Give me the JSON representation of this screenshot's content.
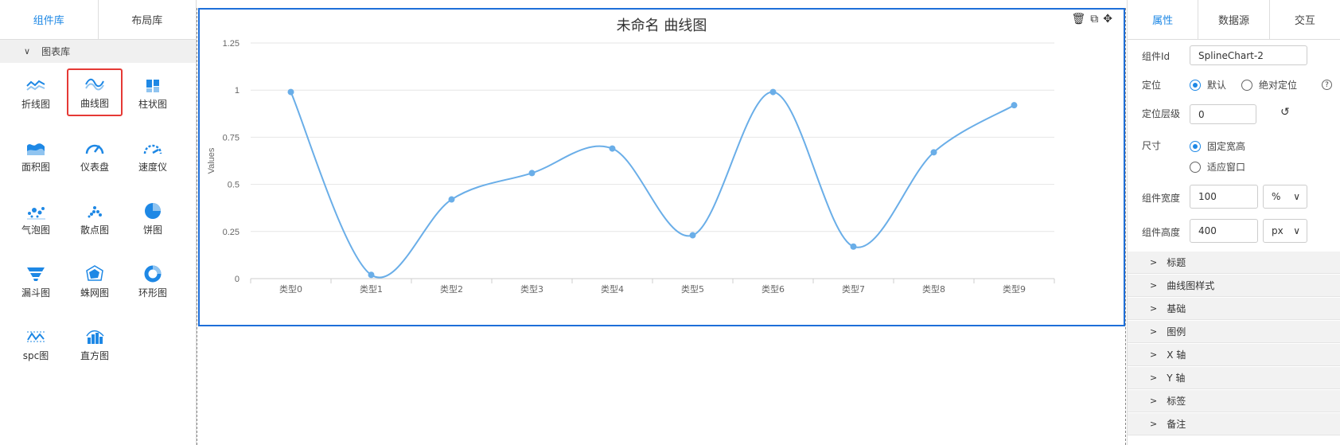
{
  "left_panel": {
    "tabs": [
      {
        "label": "组件库"
      },
      {
        "label": "布局库"
      }
    ],
    "section": {
      "label": "图表库"
    },
    "items": [
      {
        "label": "折线图",
        "icon": "line-chart-icon"
      },
      {
        "label": "曲线图",
        "icon": "spline-chart-icon",
        "selected": true
      },
      {
        "label": "柱状图",
        "icon": "bar-chart-icon"
      },
      {
        "label": "面积图",
        "icon": "area-chart-icon"
      },
      {
        "label": "仪表盘",
        "icon": "gauge-icon"
      },
      {
        "label": "速度仪",
        "icon": "speedometer-icon"
      },
      {
        "label": "气泡图",
        "icon": "bubble-chart-icon"
      },
      {
        "label": "散点图",
        "icon": "scatter-chart-icon"
      },
      {
        "label": "饼图",
        "icon": "pie-chart-icon"
      },
      {
        "label": "漏斗图",
        "icon": "funnel-chart-icon"
      },
      {
        "label": "蛛网图",
        "icon": "radar-chart-icon"
      },
      {
        "label": "环形图",
        "icon": "donut-chart-icon"
      },
      {
        "label": "spc图",
        "icon": "spc-chart-icon"
      },
      {
        "label": "直方图",
        "icon": "histogram-icon"
      }
    ]
  },
  "widget": {
    "title": "未命名 曲线图",
    "tool_icons": [
      "trash-icon",
      "copy-icon",
      "move-icon"
    ]
  },
  "chart_data": {
    "type": "line",
    "smooth": true,
    "title": "未命名 曲线图",
    "ylabel": "Values",
    "xlabel": "",
    "categories": [
      "类型0",
      "类型1",
      "类型2",
      "类型3",
      "类型4",
      "类型5",
      "类型6",
      "类型7",
      "类型8",
      "类型9"
    ],
    "series": [
      {
        "values": [
          0.99,
          0.02,
          0.42,
          0.56,
          0.69,
          0.23,
          0.99,
          0.17,
          0.67,
          0.92
        ]
      }
    ],
    "ylim": [
      0,
      1.25
    ],
    "yticks": [
      "0",
      "0.25",
      "0.5",
      "0.75",
      "1",
      "1.25"
    ],
    "grid": true,
    "color": "#6aaee8"
  },
  "right_panel": {
    "tabs": [
      {
        "label": "属性"
      },
      {
        "label": "数据源"
      },
      {
        "label": "交互"
      }
    ],
    "component_id": {
      "label": "组件Id",
      "value": "SplineChart-2"
    },
    "position": {
      "label": "定位",
      "option1": "默认",
      "option2": "绝对定位",
      "help": "?"
    },
    "z_index": {
      "label": "定位层级",
      "value": "0"
    },
    "size": {
      "label": "尺寸",
      "option1": "固定宽高",
      "option2": "适应窗口"
    },
    "width": {
      "label": "组件宽度",
      "value": "100",
      "unit": "%"
    },
    "height": {
      "label": "组件高度",
      "value": "400",
      "unit": "px"
    },
    "sections": [
      {
        "label": "标题"
      },
      {
        "label": "曲线图样式"
      },
      {
        "label": "基础"
      },
      {
        "label": "图例"
      },
      {
        "label": "X 轴"
      },
      {
        "label": "Y 轴"
      },
      {
        "label": "标签"
      },
      {
        "label": "备注"
      }
    ]
  }
}
